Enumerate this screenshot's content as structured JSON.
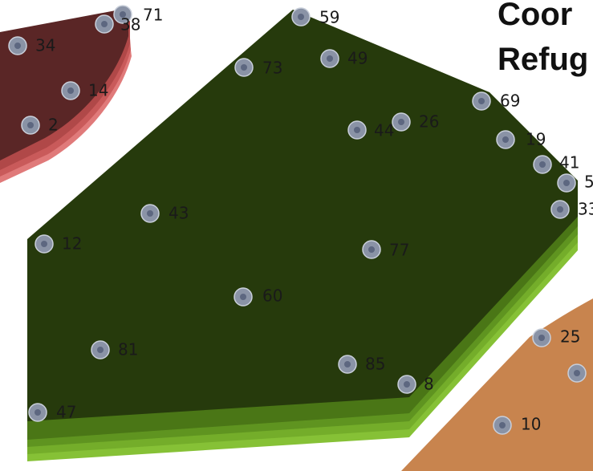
{
  "title_lines": [
    "Coor",
    "Refug"
  ],
  "colors": {
    "red_region": "#5a2626",
    "red_edge": "#d96a6a",
    "green_region": "#263a0c",
    "green_edge": "#86c136",
    "orange_region": "#c8844e",
    "marker_fill": "#8a93a6",
    "marker_core": "#5d6780",
    "label": "#1a1a1a"
  },
  "regions": {
    "red": {
      "points": [
        "71",
        "38",
        "34",
        "14",
        "2"
      ]
    },
    "green": {
      "points": [
        "59",
        "73",
        "49",
        "69",
        "44",
        "26",
        "19",
        "41",
        "5",
        "33",
        "43",
        "12",
        "77",
        "60",
        "81",
        "85",
        "8",
        "47"
      ]
    },
    "orange": {
      "points": [
        "25",
        "",
        "10"
      ]
    }
  }
}
